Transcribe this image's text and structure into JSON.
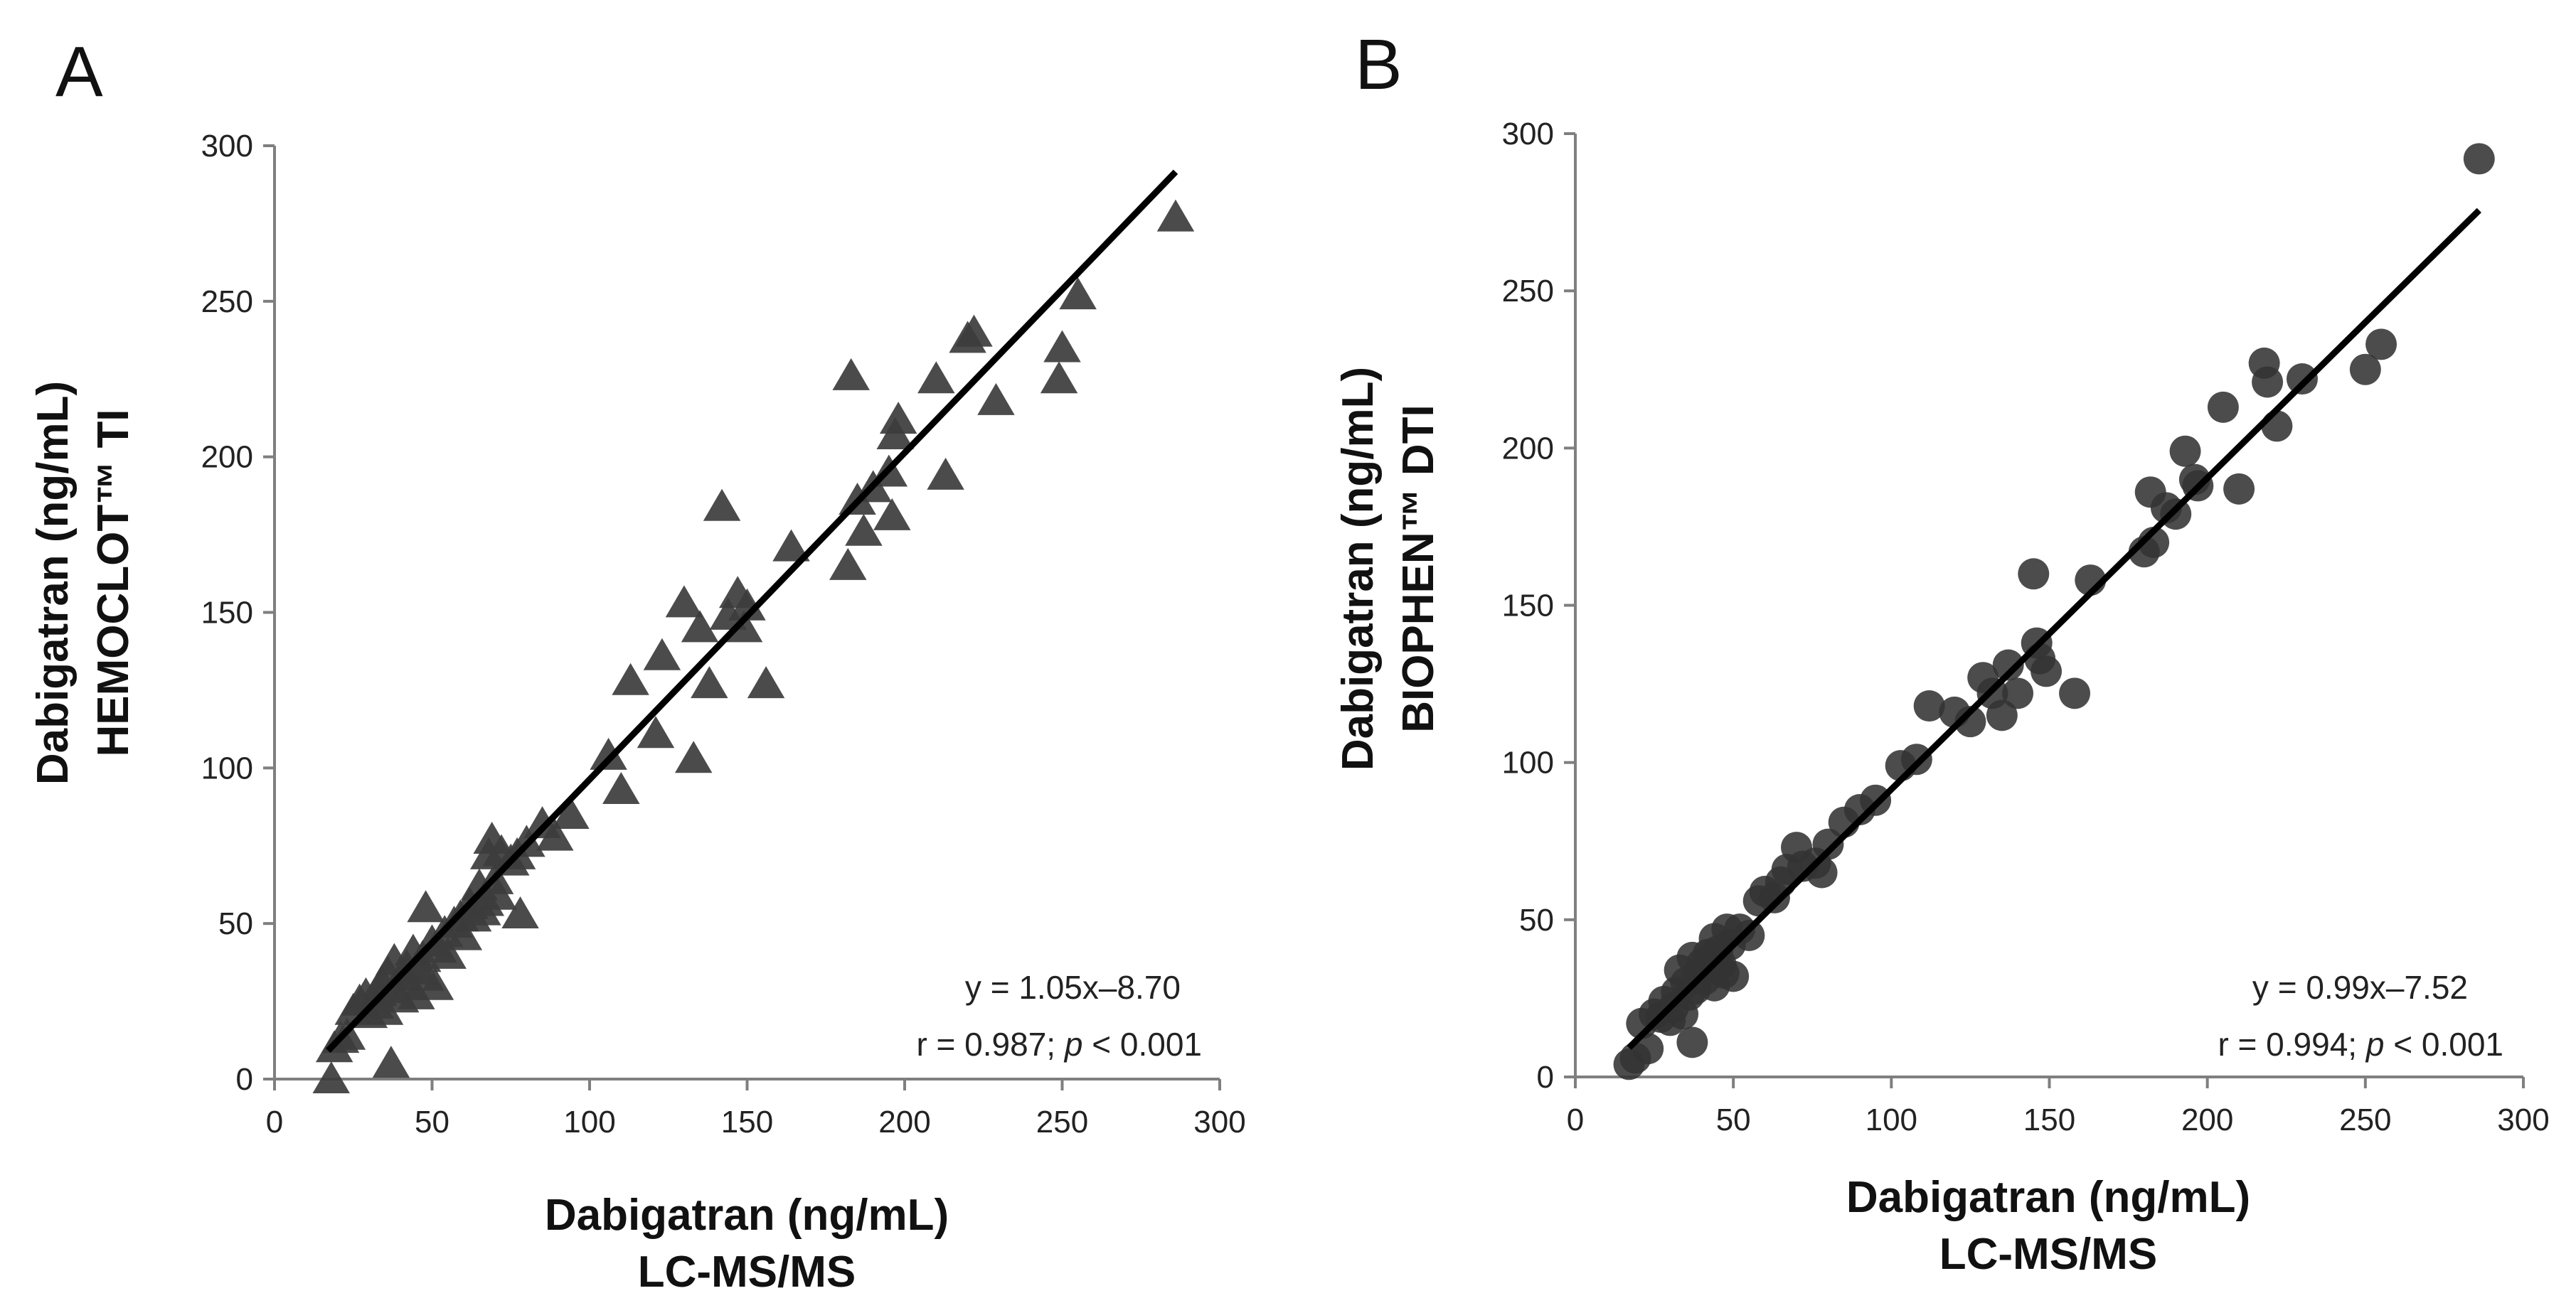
{
  "chart_data": [
    {
      "panel": "A",
      "type": "scatter",
      "marker": "triangle",
      "xlabel": [
        "Dabigatran (ng/mL)",
        "LC-MS/MS"
      ],
      "ylabel": [
        "Dabigatran (ng/mL)",
        "HEMOCLOT™ TI"
      ],
      "xlim": [
        0,
        300
      ],
      "ylim": [
        0,
        300
      ],
      "xticks": [
        0,
        50,
        100,
        150,
        200,
        250,
        300
      ],
      "yticks": [
        0,
        50,
        100,
        150,
        200,
        250,
        300
      ],
      "equation": "y = 1.05x–8.70",
      "stats_prefix": "r = 0.987; ",
      "stats_p": "p",
      "stats_suffix": " < 0.001",
      "fit": {
        "slope": 1.05,
        "intercept": -8.7,
        "x_range": [
          17,
          286
        ]
      },
      "color": "#3c3c3c",
      "points": [
        [
          18,
          0
        ],
        [
          19,
          10
        ],
        [
          21,
          13
        ],
        [
          23,
          14
        ],
        [
          25,
          22
        ],
        [
          27,
          25
        ],
        [
          29,
          27
        ],
        [
          30,
          21
        ],
        [
          32,
          24
        ],
        [
          33,
          28
        ],
        [
          34,
          31
        ],
        [
          35,
          22
        ],
        [
          36,
          34
        ],
        [
          37,
          5
        ],
        [
          38,
          29
        ],
        [
          38,
          38
        ],
        [
          40,
          26
        ],
        [
          41,
          33
        ],
        [
          42,
          36
        ],
        [
          43,
          30
        ],
        [
          44,
          41
        ],
        [
          45,
          27
        ],
        [
          46,
          35
        ],
        [
          47,
          39
        ],
        [
          48,
          33
        ],
        [
          48,
          55
        ],
        [
          50,
          44
        ],
        [
          51,
          30
        ],
        [
          52,
          42
        ],
        [
          54,
          47
        ],
        [
          55,
          40
        ],
        [
          57,
          50
        ],
        [
          59,
          52
        ],
        [
          60,
          46
        ],
        [
          62,
          56
        ],
        [
          63,
          52
        ],
        [
          65,
          62
        ],
        [
          66,
          54
        ],
        [
          67,
          57
        ],
        [
          68,
          72
        ],
        [
          69,
          77
        ],
        [
          70,
          64
        ],
        [
          71,
          59
        ],
        [
          72,
          73
        ],
        [
          75,
          70
        ],
        [
          77,
          72
        ],
        [
          78,
          53
        ],
        [
          80,
          76
        ],
        [
          85,
          82
        ],
        [
          89,
          78
        ],
        [
          94,
          85
        ],
        [
          106,
          104
        ],
        [
          110,
          93
        ],
        [
          113,
          128
        ],
        [
          121,
          111
        ],
        [
          123,
          136
        ],
        [
          130,
          153
        ],
        [
          133,
          103
        ],
        [
          135,
          145
        ],
        [
          138,
          127
        ],
        [
          142,
          184
        ],
        [
          144,
          149
        ],
        [
          147,
          156
        ],
        [
          149,
          145
        ],
        [
          150,
          152
        ],
        [
          156,
          127
        ],
        [
          164,
          171
        ],
        [
          182,
          165
        ],
        [
          183,
          226
        ],
        [
          185,
          186
        ],
        [
          187,
          176
        ],
        [
          190,
          190
        ],
        [
          195,
          195
        ],
        [
          196,
          181
        ],
        [
          197,
          207
        ],
        [
          198,
          212
        ],
        [
          210,
          225
        ],
        [
          213,
          194
        ],
        [
          220,
          238
        ],
        [
          222,
          240
        ],
        [
          229,
          218
        ],
        [
          249,
          225
        ],
        [
          250,
          235
        ],
        [
          255,
          252
        ],
        [
          286,
          277
        ]
      ]
    },
    {
      "panel": "B",
      "type": "scatter",
      "marker": "circle",
      "xlabel": [
        "Dabigatran (ng/mL)",
        "LC-MS/MS"
      ],
      "ylabel": [
        "Dabigatran (ng/mL)",
        "BIOPHEN™ DTI"
      ],
      "xlim": [
        0,
        300
      ],
      "ylim": [
        0,
        300
      ],
      "xticks": [
        0,
        50,
        100,
        150,
        200,
        250,
        300
      ],
      "yticks": [
        0,
        50,
        100,
        150,
        200,
        250,
        300
      ],
      "equation": "y = 0.99x–7.52",
      "stats_prefix": "r = 0.994; ",
      "stats_p": "p",
      "stats_suffix": " < 0.001",
      "fit": {
        "slope": 0.99,
        "intercept": -7.52,
        "x_range": [
          17,
          286
        ]
      },
      "color": "#333333",
      "points": [
        [
          17,
          4
        ],
        [
          19,
          6
        ],
        [
          21,
          17
        ],
        [
          23,
          9
        ],
        [
          25,
          20
        ],
        [
          27,
          19
        ],
        [
          28,
          24
        ],
        [
          30,
          18
        ],
        [
          31,
          22
        ],
        [
          32,
          27
        ],
        [
          33,
          34
        ],
        [
          34,
          20
        ],
        [
          35,
          30
        ],
        [
          36,
          26
        ],
        [
          37,
          11
        ],
        [
          37,
          38
        ],
        [
          38,
          28
        ],
        [
          39,
          33
        ],
        [
          40,
          36
        ],
        [
          41,
          31
        ],
        [
          42,
          39
        ],
        [
          43,
          35
        ],
        [
          44,
          29
        ],
        [
          44,
          44
        ],
        [
          45,
          40
        ],
        [
          46,
          36
        ],
        [
          47,
          33
        ],
        [
          48,
          47
        ],
        [
          49,
          42
        ],
        [
          50,
          32
        ],
        [
          52,
          47
        ],
        [
          55,
          45
        ],
        [
          58,
          56
        ],
        [
          60,
          59
        ],
        [
          63,
          57
        ],
        [
          65,
          62
        ],
        [
          67,
          66
        ],
        [
          70,
          73
        ],
        [
          72,
          67
        ],
        [
          76,
          68
        ],
        [
          78,
          65
        ],
        [
          80,
          74
        ],
        [
          85,
          81
        ],
        [
          90,
          85
        ],
        [
          95,
          88
        ],
        [
          103,
          99
        ],
        [
          108,
          101
        ],
        [
          112,
          118
        ],
        [
          120,
          116
        ],
        [
          125,
          113
        ],
        [
          129,
          127
        ],
        [
          132,
          122
        ],
        [
          135,
          115
        ],
        [
          137,
          131
        ],
        [
          140,
          122
        ],
        [
          145,
          160
        ],
        [
          146,
          138
        ],
        [
          147,
          133
        ],
        [
          149,
          129
        ],
        [
          158,
          122
        ],
        [
          163,
          158
        ],
        [
          180,
          167
        ],
        [
          182,
          186
        ],
        [
          183,
          170
        ],
        [
          187,
          181
        ],
        [
          190,
          179
        ],
        [
          193,
          199
        ],
        [
          196,
          190
        ],
        [
          197,
          188
        ],
        [
          205,
          213
        ],
        [
          210,
          187
        ],
        [
          218,
          227
        ],
        [
          219,
          221
        ],
        [
          222,
          207
        ],
        [
          230,
          222
        ],
        [
          250,
          225
        ],
        [
          255,
          233
        ],
        [
          286,
          292
        ]
      ]
    }
  ]
}
